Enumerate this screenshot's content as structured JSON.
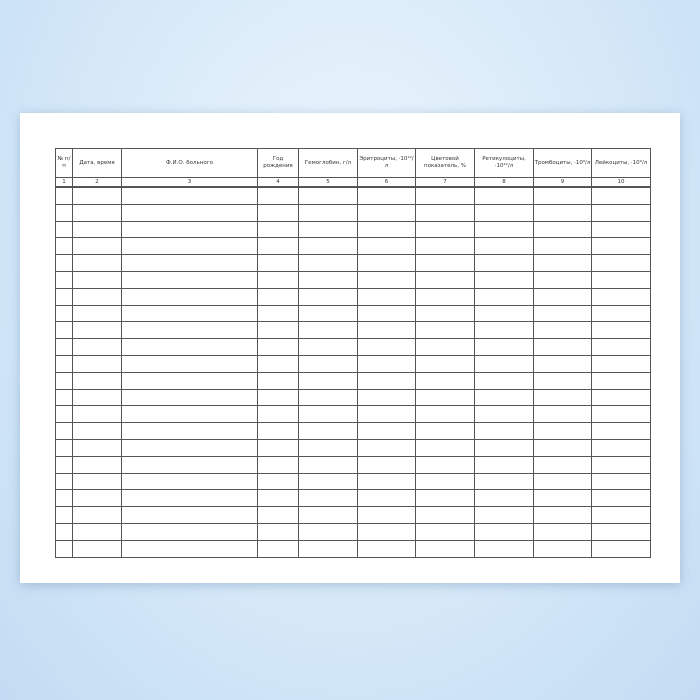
{
  "table": {
    "headers": [
      "№ п/п",
      "Дата, время",
      "Ф.И.О. больного",
      "Год рождения",
      "Гемоглобин, г/л",
      "Эритроциты, ·10¹²/л",
      "Цветовой показатель, %",
      "Ретикулоциты, ·10¹²/л",
      "Тромбоциты, ·10⁹/л",
      "Лейкоциты, ·10⁹/л"
    ],
    "numbers": [
      "1",
      "2",
      "3",
      "4",
      "5",
      "6",
      "7",
      "8",
      "9",
      "10"
    ],
    "empty_rows": 22
  }
}
